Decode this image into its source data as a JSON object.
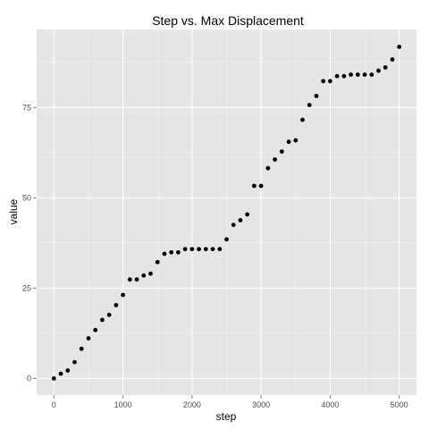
{
  "chart_data": {
    "type": "scatter",
    "title": "Step vs. Max Displacement",
    "xlabel": "step",
    "ylabel": "value",
    "xlim": [
      -250,
      5250
    ],
    "ylim": [
      -4.6,
      96.6
    ],
    "xticks": [
      0,
      1000,
      2000,
      3000,
      4000,
      5000
    ],
    "yticks": [
      0,
      25,
      50,
      75
    ],
    "xtick_labels": [
      "0",
      "1000",
      "2000",
      "3000",
      "4000",
      "5000"
    ],
    "ytick_labels": [
      "0",
      "25",
      "50",
      "75"
    ],
    "grid": true,
    "point_color": "#000000",
    "panel_color": "#e5e5e5",
    "x": [
      0,
      100,
      200,
      300,
      400,
      500,
      600,
      700,
      800,
      900,
      1000,
      1100,
      1200,
      1300,
      1400,
      1500,
      1600,
      1700,
      1800,
      1900,
      2000,
      2100,
      2200,
      2300,
      2400,
      2500,
      2600,
      2700,
      2800,
      2900,
      3000,
      3100,
      3200,
      3300,
      3400,
      3500,
      3600,
      3700,
      3800,
      3900,
      4000,
      4100,
      4200,
      4300,
      4400,
      4500,
      4600,
      4700,
      4800,
      4900,
      5000
    ],
    "y": [
      0,
      1.3,
      2.2,
      4.5,
      8.2,
      11.1,
      13.4,
      16.2,
      17.6,
      20.3,
      23.1,
      27.4,
      27.4,
      28.5,
      29.0,
      32.2,
      34.5,
      34.9,
      34.9,
      35.8,
      35.8,
      35.8,
      35.8,
      35.8,
      35.8,
      38.5,
      42.5,
      43.8,
      45.4,
      53.3,
      53.3,
      58.2,
      60.6,
      62.8,
      65.5,
      65.9,
      71.6,
      75.7,
      78.2,
      82.3,
      82.3,
      83.7,
      83.7,
      84.1,
      84.1,
      84.1,
      84.1,
      85.2,
      86.1,
      88.3,
      91.8
    ]
  }
}
